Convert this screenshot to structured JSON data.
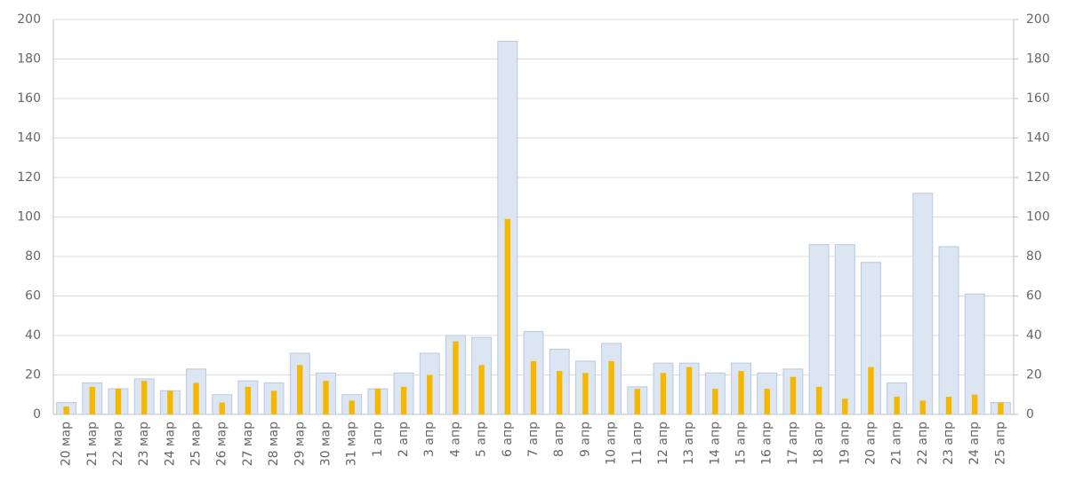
{
  "chart_data": {
    "type": "bar",
    "categories": [
      "20 мар",
      "21 мар",
      "22 мар",
      "23 мар",
      "24 мар",
      "25 мар",
      "26 мар",
      "27 мар",
      "28 мар",
      "29 мар",
      "30 мар",
      "31 мар",
      "1 апр",
      "2 апр",
      "3 апр",
      "4 апр",
      "5 апр",
      "6 апр",
      "7 апр",
      "8 апр",
      "9 апр",
      "10 апр",
      "11 апр",
      "12 апр",
      "13 апр",
      "14 апр",
      "15 апр",
      "16 апр",
      "17 апр",
      "18 апр",
      "19 апр",
      "20 апр",
      "21 апр",
      "22 апр",
      "23 апр",
      "24 апр",
      "25 апр"
    ],
    "series": [
      {
        "color": "#dce6f2",
        "values": [
          6,
          16,
          13,
          18,
          12,
          23,
          10,
          17,
          16,
          31,
          21,
          10,
          13,
          21,
          31,
          40,
          39,
          189,
          42,
          33,
          27,
          36,
          14,
          26,
          26,
          21,
          26,
          21,
          23,
          86,
          86,
          77,
          16,
          112,
          85,
          61,
          6
        ]
      },
      {
        "color": "#f5b800",
        "values": [
          4,
          14,
          13,
          17,
          12,
          16,
          6,
          14,
          12,
          25,
          17,
          7,
          13,
          14,
          20,
          37,
          25,
          99,
          27,
          22,
          21,
          27,
          13,
          21,
          24,
          13,
          22,
          13,
          19,
          14,
          8,
          24,
          9,
          7,
          9,
          10,
          6
        ]
      }
    ],
    "ylim": [
      0,
      200
    ],
    "yticks": [
      0,
      20,
      40,
      60,
      80,
      100,
      120,
      140,
      160,
      180,
      200
    ],
    "y2lim": [
      0,
      200
    ],
    "y2ticks": [
      0,
      20,
      40,
      60,
      80,
      100,
      120,
      140,
      160,
      180,
      200
    ],
    "grid": true
  }
}
